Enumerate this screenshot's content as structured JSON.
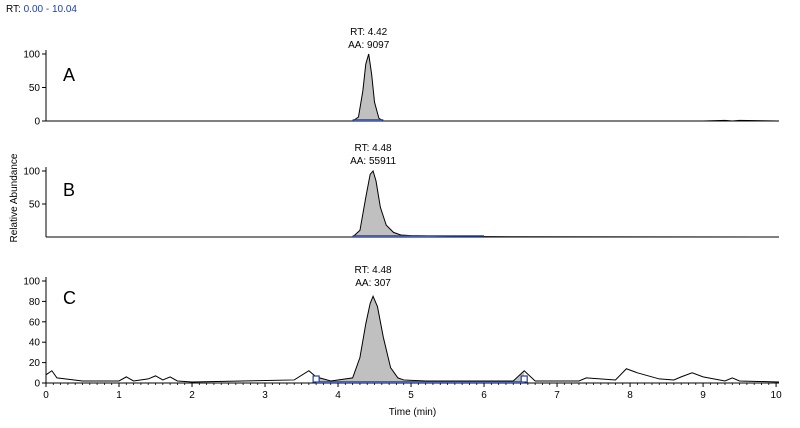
{
  "header": {
    "rt_label": "RT:",
    "rt_range": "0.00 - 10.04"
  },
  "colors": {
    "fill": "#c0c0c0",
    "trace": "#000000",
    "baseline": "#1f3fa8",
    "header_range": "#1f3fa8"
  },
  "chart_data": [
    {
      "type": "area",
      "panel_label": "A",
      "annotation": {
        "rt": "RT: 4.42",
        "aa": "AA: 9097"
      },
      "xlim": [
        0,
        10.04
      ],
      "ylim": [
        0,
        100
      ],
      "yticks": [
        "0",
        "50",
        "100"
      ],
      "x": [
        0.0,
        4.2,
        4.28,
        4.34,
        4.38,
        4.42,
        4.46,
        4.5,
        4.56,
        4.62,
        9.0,
        9.3,
        9.4,
        9.5,
        10.04
      ],
      "y": [
        0,
        0,
        6,
        45,
        85,
        100,
        70,
        28,
        4,
        0,
        0,
        1,
        0,
        1,
        0
      ]
    },
    {
      "type": "area",
      "panel_label": "B",
      "annotation": {
        "rt": "RT: 4.48",
        "aa": "AA: 55911"
      },
      "xlim": [
        0,
        10.04
      ],
      "ylim": [
        0,
        100
      ],
      "yticks": [
        "50",
        "100"
      ],
      "ylabel": "Relative Abundance",
      "x": [
        0.0,
        4.2,
        4.3,
        4.38,
        4.44,
        4.48,
        4.52,
        4.58,
        4.66,
        4.76,
        4.86,
        5.0,
        5.5,
        6.0,
        10.04
      ],
      "y": [
        0,
        0,
        10,
        60,
        95,
        100,
        85,
        45,
        18,
        7,
        3,
        2,
        1,
        0.5,
        0
      ]
    },
    {
      "type": "area",
      "panel_label": "C",
      "annotation": {
        "rt": "RT: 4.48",
        "aa": "AA: 307"
      },
      "xlim": [
        0,
        10.04
      ],
      "ylim": [
        0,
        100
      ],
      "yticks": [
        "0",
        "20",
        "40",
        "60",
        "80",
        "100"
      ],
      "xticks": [
        "0",
        "1",
        "2",
        "3",
        "4",
        "5",
        "6",
        "7",
        "8",
        "9",
        "10"
      ],
      "xlabel": "Time (min)",
      "x": [
        0.0,
        0.08,
        0.15,
        0.5,
        1.0,
        1.1,
        1.2,
        1.4,
        1.5,
        1.6,
        1.7,
        1.8,
        2.0,
        3.4,
        3.6,
        3.7,
        3.9,
        4.2,
        4.3,
        4.38,
        4.44,
        4.48,
        4.54,
        4.62,
        4.72,
        4.82,
        4.9,
        5.2,
        6.4,
        6.55,
        6.7,
        7.3,
        7.4,
        7.8,
        7.95,
        8.1,
        8.4,
        8.6,
        8.7,
        8.85,
        9.0,
        9.3,
        9.4,
        9.5,
        10.04
      ],
      "y": [
        8,
        12,
        5,
        2,
        2,
        6,
        2,
        4,
        7,
        3,
        6,
        2,
        1,
        3,
        12,
        6,
        2,
        5,
        25,
        58,
        78,
        85,
        75,
        45,
        15,
        5,
        3,
        2,
        2,
        12,
        2,
        2,
        5,
        3,
        14,
        10,
        4,
        3,
        6,
        10,
        6,
        2,
        5,
        2,
        1
      ]
    }
  ]
}
